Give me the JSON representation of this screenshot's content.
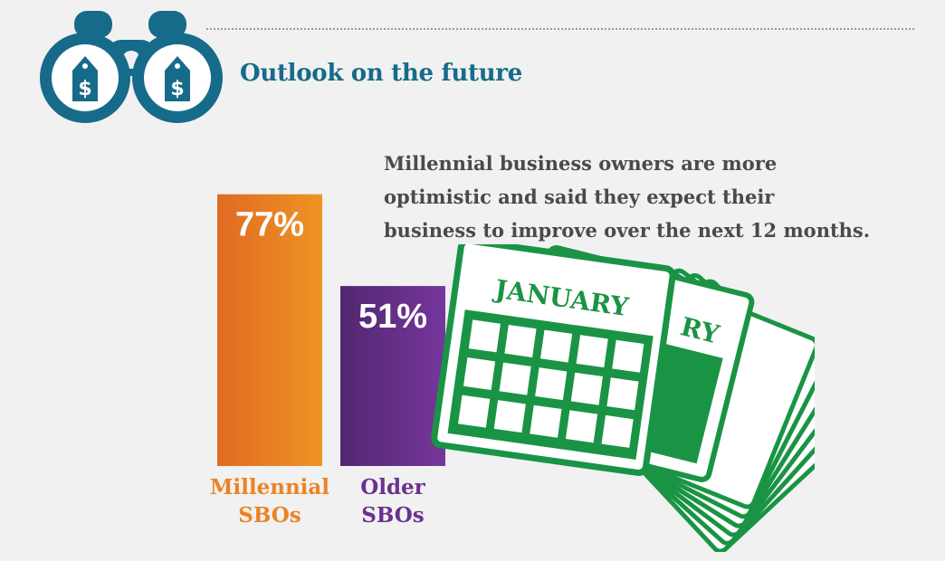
{
  "section": {
    "title": "Outlook on the future"
  },
  "description": {
    "lines": [
      "Millennial business owners are more",
      "optimistic and said they expect their",
      "business to improve over the next 12 months."
    ]
  },
  "calendar": {
    "month_label": "JANUARY",
    "back_label_fragment": "RY"
  },
  "icons": {
    "binoculars": "binoculars-icon",
    "dollar_tag": "dollar-tag-icon",
    "calendar": "calendar-icon"
  },
  "colors": {
    "title": "#176b8a",
    "binoculars": "#176b8a",
    "millennial": "#ec8323",
    "older": "#6a3190",
    "calendar": "#1a9444",
    "text": "#4a4a4a"
  },
  "chart_data": {
    "type": "bar",
    "unit": "%",
    "ylim": [
      0,
      100
    ],
    "categories": [
      {
        "label_lines": [
          "Millennial",
          "SBOs"
        ],
        "value": 77,
        "value_label": "77%",
        "color": "#ec8323"
      },
      {
        "label_lines": [
          "Older",
          "SBOs"
        ],
        "value": 51,
        "value_label": "51%",
        "color": "#6a3190"
      }
    ]
  }
}
